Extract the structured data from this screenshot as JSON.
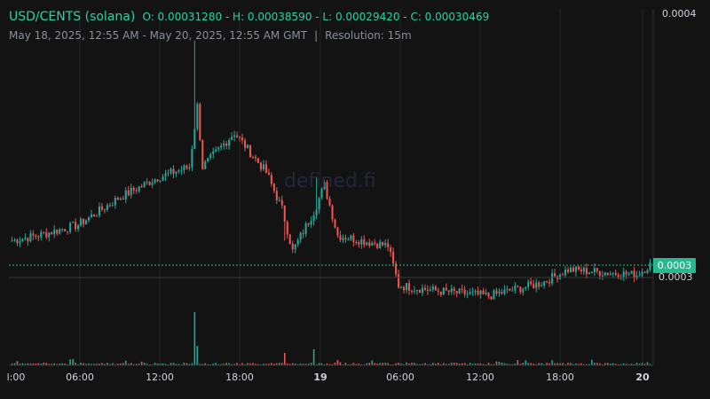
{
  "header": {
    "symbol": "USD/CENTS (solana)",
    "ohlc": "O: 0.00031280 - H: 0.00038590 - L: 0.00029420 - C: 0.00030469",
    "range": "May 18, 2025, 12:55 AM - May 20, 2025, 12:55 AM GMT",
    "separator": "|",
    "resolution": "Resolution: 15m"
  },
  "watermark": "defined.fi",
  "y_axis": {
    "top_label": "0.0004",
    "mid_label": "0.0003",
    "current_price_label": "0.0003"
  },
  "x_axis": {
    "labels": [
      {
        "text": "l:00",
        "bold": false
      },
      {
        "text": "06:00",
        "bold": false
      },
      {
        "text": "12:00",
        "bold": false
      },
      {
        "text": "18:00",
        "bold": false
      },
      {
        "text": "19",
        "bold": true
      },
      {
        "text": "06:00",
        "bold": false
      },
      {
        "text": "12:00",
        "bold": false
      },
      {
        "text": "18:00",
        "bold": false
      },
      {
        "text": "20",
        "bold": true
      }
    ]
  },
  "colors": {
    "up": "#26a69a",
    "down": "#ef5350",
    "grid": "#262626",
    "price_line": "#26b98e"
  },
  "chart_data": {
    "type": "candlestick",
    "y_range": [
      0.00025,
      0.00041
    ],
    "current_price": 0.0003,
    "keypoints": [
      {
        "i": 0,
        "p": 0.000314
      },
      {
        "i": 10,
        "p": 0.000316
      },
      {
        "i": 25,
        "p": 0.00032
      },
      {
        "i": 40,
        "p": 0.00033
      },
      {
        "i": 55,
        "p": 0.000338
      },
      {
        "i": 67,
        "p": 0.000342
      },
      {
        "i": 70,
        "p": 0.000365
      },
      {
        "i": 72,
        "p": 0.000342
      },
      {
        "i": 84,
        "p": 0.000355
      },
      {
        "i": 96,
        "p": 0.00034
      },
      {
        "i": 102,
        "p": 0.000326
      },
      {
        "i": 106,
        "p": 0.00031
      },
      {
        "i": 114,
        "p": 0.000325
      },
      {
        "i": 118,
        "p": 0.000335
      },
      {
        "i": 123,
        "p": 0.000316
      },
      {
        "i": 142,
        "p": 0.000312
      },
      {
        "i": 146,
        "p": 0.000297
      },
      {
        "i": 160,
        "p": 0.000295
      },
      {
        "i": 180,
        "p": 0.000293
      },
      {
        "i": 200,
        "p": 0.000298
      },
      {
        "i": 210,
        "p": 0.000303
      },
      {
        "i": 236,
        "p": 0.000301
      },
      {
        "i": 241,
        "p": 0.000305
      }
    ],
    "spikes": [
      {
        "i": 69,
        "high": 0.00039
      },
      {
        "i": 115,
        "high": 0.000338
      },
      {
        "i": 103,
        "high": 0.000314
      }
    ]
  }
}
